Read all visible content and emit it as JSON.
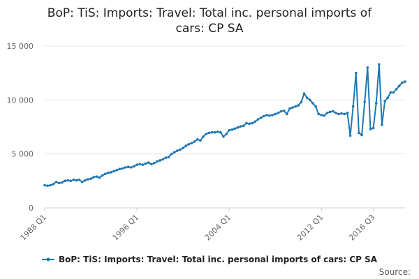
{
  "chart_data": {
    "type": "line",
    "title_lines": [
      "BoP: TiS: Imports: Travel: Total inc. personal imports of",
      "cars: CP SA"
    ],
    "xlabel": "",
    "ylabel": "",
    "x_tick_labels": [
      "1988 Q1",
      "1996 Q1",
      "2004 Q1",
      "2012 Q1",
      "2016 Q3"
    ],
    "y_tick_labels": [
      "0",
      "5 000",
      "10 000",
      "15 000"
    ],
    "y_ticks": [
      0,
      5000,
      10000,
      15000
    ],
    "ylim": [
      0,
      15000
    ],
    "x_start": "1988 Q1",
    "grid": "horizontal",
    "legend_position": "bottom",
    "series": [
      {
        "name": "BoP: TiS: Imports: Travel: Total inc. personal imports of cars: CP SA",
        "color": "#1f78b4",
        "values": [
          2100,
          2050,
          2100,
          2200,
          2400,
          2300,
          2350,
          2500,
          2550,
          2500,
          2600,
          2550,
          2600,
          2400,
          2550,
          2650,
          2700,
          2850,
          2900,
          2800,
          3000,
          3150,
          3250,
          3300,
          3400,
          3500,
          3600,
          3650,
          3750,
          3800,
          3750,
          3850,
          4000,
          4050,
          4000,
          4100,
          4200,
          4050,
          4150,
          4300,
          4400,
          4500,
          4650,
          4700,
          5000,
          5150,
          5300,
          5400,
          5550,
          5750,
          5900,
          6000,
          6150,
          6350,
          6250,
          6600,
          6850,
          6950,
          7000,
          7000,
          7050,
          7000,
          6600,
          6850,
          7200,
          7250,
          7350,
          7450,
          7550,
          7600,
          7850,
          7800,
          7850,
          8000,
          8200,
          8350,
          8500,
          8600,
          8550,
          8600,
          8700,
          8800,
          8950,
          9000,
          8700,
          9200,
          9300,
          9400,
          9500,
          9800,
          10600,
          10200,
          10000,
          9700,
          9400,
          8700,
          8600,
          8550,
          8800,
          8900,
          8950,
          8800,
          8700,
          8750,
          8700,
          8800,
          6700,
          9400,
          12500,
          6950,
          6750,
          9800,
          13000,
          7300,
          7400,
          9700,
          13300,
          7700,
          9900,
          10200,
          10700,
          10700,
          11000,
          11300,
          11600,
          11700
        ]
      }
    ],
    "source_label": "Source:"
  }
}
